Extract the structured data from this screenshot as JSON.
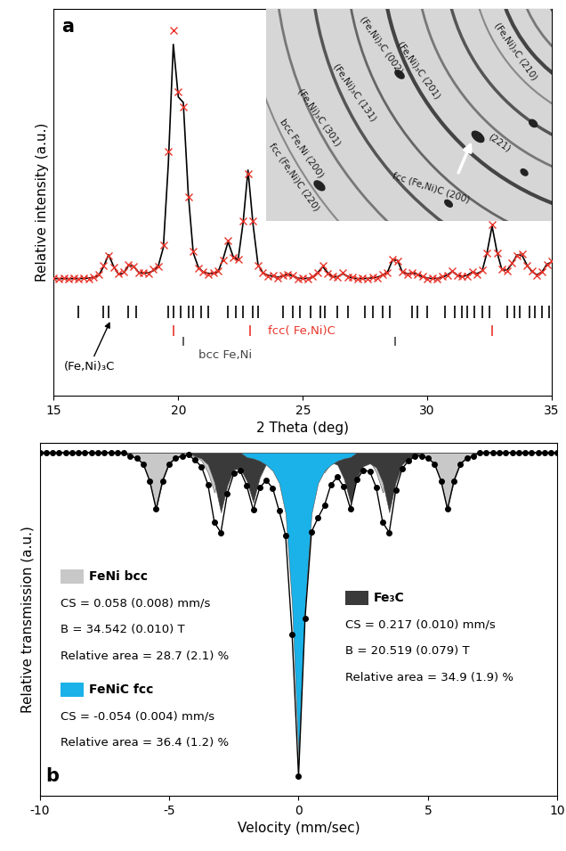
{
  "chart_data": [
    {
      "type": "line",
      "panel": "a",
      "x_label": "2 Theta (deg)",
      "y_label": "Relative intensity (a.u.)",
      "xlim": [
        15,
        35
      ],
      "xticks": [
        15,
        20,
        25,
        30,
        35
      ],
      "ylim": [
        -0.47,
        1.15
      ],
      "tick_labels": "x",
      "x": [
        15,
        15.2,
        15.4,
        15.6,
        15.8,
        16,
        16.2,
        16.4,
        16.6,
        16.8,
        17,
        17.2,
        17.4,
        17.6,
        17.8,
        18,
        18.2,
        18.4,
        18.6,
        18.8,
        19,
        19.2,
        19.4,
        19.6,
        19.8,
        20,
        20.2,
        20.4,
        20.6,
        20.8,
        21,
        21.2,
        21.4,
        21.6,
        21.8,
        22,
        22.2,
        22.4,
        22.6,
        22.8,
        23,
        23.2,
        23.4,
        23.6,
        23.8,
        24,
        24.2,
        24.4,
        24.6,
        24.8,
        25,
        25.2,
        25.4,
        25.6,
        25.8,
        26,
        26.2,
        26.4,
        26.6,
        26.8,
        27,
        27.2,
        27.4,
        27.6,
        27.8,
        28,
        28.2,
        28.4,
        28.6,
        28.8,
        29,
        29.2,
        29.4,
        29.6,
        29.8,
        30,
        30.2,
        30.4,
        30.6,
        30.8,
        31,
        31.2,
        31.4,
        31.6,
        31.8,
        32,
        32.2,
        32.4,
        32.6,
        32.8,
        33,
        33.2,
        33.4,
        33.6,
        33.8,
        34,
        34.2,
        34.4,
        34.6,
        34.8,
        35
      ],
      "series": [
        {
          "color": "#e8352b",
          "marker": "x",
          "line_style": "none",
          "values": [
            0.022,
            0.018,
            0.021,
            0.019,
            0.023,
            0.02,
            0.024,
            0.02,
            0.027,
            0.036,
            0.075,
            0.115,
            0.068,
            0.04,
            0.047,
            0.078,
            0.07,
            0.044,
            0.046,
            0.041,
            0.058,
            0.07,
            0.16,
            0.55,
            1.06,
            0.8,
            0.74,
            0.36,
            0.135,
            0.065,
            0.05,
            0.039,
            0.045,
            0.052,
            0.098,
            0.18,
            0.11,
            0.1,
            0.26,
            0.46,
            0.26,
            0.075,
            0.046,
            0.031,
            0.032,
            0.024,
            0.033,
            0.037,
            0.032,
            0.02,
            0.023,
            0.019,
            0.028,
            0.043,
            0.073,
            0.042,
            0.03,
            0.025,
            0.043,
            0.027,
            0.025,
            0.018,
            0.022,
            0.019,
            0.026,
            0.024,
            0.037,
            0.044,
            0.1,
            0.093,
            0.05,
            0.037,
            0.046,
            0.036,
            0.03,
            0.02,
            0.022,
            0.019,
            0.028,
            0.033,
            0.053,
            0.032,
            0.03,
            0.031,
            0.05,
            0.039,
            0.055,
            0.125,
            0.245,
            0.125,
            0.058,
            0.052,
            0.085,
            0.115,
            0.122,
            0.073,
            0.052,
            0.033,
            0.05,
            0.077,
            0.093
          ]
        },
        {
          "color": "#000000",
          "line_style": "solid",
          "values": [
            0.02,
            0.02,
            0.02,
            0.02,
            0.02,
            0.02,
            0.021,
            0.022,
            0.025,
            0.033,
            0.07,
            0.12,
            0.072,
            0.038,
            0.043,
            0.074,
            0.073,
            0.047,
            0.043,
            0.044,
            0.053,
            0.074,
            0.15,
            0.5,
            1.0,
            0.78,
            0.757,
            0.375,
            0.128,
            0.069,
            0.047,
            0.042,
            0.041,
            0.049,
            0.103,
            0.174,
            0.113,
            0.097,
            0.252,
            0.474,
            0.248,
            0.079,
            0.043,
            0.034,
            0.029,
            0.026,
            0.03,
            0.04,
            0.03,
            0.022,
            0.02,
            0.021,
            0.025,
            0.045,
            0.07,
            0.045,
            0.027,
            0.028,
            0.04,
            0.03,
            0.022,
            0.02,
            0.02,
            0.021,
            0.023,
            0.026,
            0.034,
            0.047,
            0.097,
            0.097,
            0.047,
            0.04,
            0.043,
            0.039,
            0.028,
            0.022,
            0.02,
            0.021,
            0.025,
            0.035,
            0.05,
            0.035,
            0.028,
            0.034,
            0.047,
            0.041,
            0.052,
            0.13,
            0.24,
            0.13,
            0.055,
            0.056,
            0.082,
            0.119,
            0.118,
            0.077,
            0.049,
            0.036,
            0.047,
            0.08,
            0.09
          ]
        }
      ],
      "reflections": [
        {
          "name": "(Fe,Ni)₃C",
          "color": "#000000",
          "positions": [
            16.0,
            17.0,
            17.2,
            18.0,
            18.3,
            19.6,
            19.8,
            20.1,
            20.4,
            20.6,
            20.9,
            21.2,
            22.0,
            22.3,
            22.6,
            23.0,
            23.2,
            24.2,
            24.6,
            24.9,
            25.3,
            25.7,
            25.9,
            26.4,
            26.8,
            27.5,
            27.8,
            28.2,
            28.5,
            29.4,
            29.6,
            30.0,
            30.7,
            31.1,
            31.4,
            31.6,
            31.9,
            32.2,
            32.5,
            33.2,
            33.5,
            33.7,
            34.1,
            34.3,
            34.6,
            34.9
          ]
        },
        {
          "name": "fcc( Fe,Ni)C",
          "color": "#e8352b",
          "positions": [
            19.8,
            22.9,
            32.6
          ]
        },
        {
          "name": "bcc Fe,Ni",
          "color": "#444444",
          "positions": [
            20.2,
            28.7
          ]
        }
      ],
      "inset": {
        "ring_labels": [
          "(Fe,Ni)₃C (210)",
          "(Fe,Ni)₃C (002)",
          "(Fe,Ni)₃C (201)",
          "(Fe,Ni)₃C (131)",
          "(221)",
          "(Fe,Ni)₃C (301)",
          "bcc Fe,Ni (200)",
          "fcc (Fe,Ni)C (200)",
          "fcc (Fe,Ni)C (220)"
        ]
      }
    },
    {
      "type": "line",
      "panel": "b",
      "x_label": "Velocity (mm/sec)",
      "y_label": "Relative transmission (a.u.)",
      "xlim": [
        -10,
        10
      ],
      "xticks": [
        -10,
        -5,
        0,
        5,
        10
      ],
      "ylim": [
        -0.03,
        1.03
      ],
      "tick_labels": "x",
      "baseline": 1,
      "x": [
        -10,
        -9.75,
        -9.5,
        -9.25,
        -9,
        -8.75,
        -8.5,
        -8.25,
        -8,
        -7.75,
        -7.5,
        -7.25,
        -7,
        -6.75,
        -6.5,
        -6.25,
        -6,
        -5.75,
        -5.5,
        -5.25,
        -5,
        -4.75,
        -4.5,
        -4.25,
        -4,
        -3.75,
        -3.5,
        -3.25,
        -3,
        -2.75,
        -2.5,
        -2.25,
        -2,
        -1.75,
        -1.5,
        -1.25,
        -1,
        -0.75,
        -0.5,
        -0.25,
        0,
        0.25,
        0.5,
        0.75,
        1,
        1.25,
        1.5,
        1.75,
        2,
        2.25,
        2.5,
        2.75,
        3,
        3.25,
        3.5,
        3.75,
        4,
        4.25,
        4.5,
        4.75,
        5,
        5.25,
        5.5,
        5.75,
        6,
        6.25,
        6.5,
        6.75,
        7,
        7.25,
        7.5,
        7.75,
        8,
        8.25,
        8.5,
        8.75,
        9,
        9.25,
        9.5,
        9.75,
        10
      ],
      "series": [
        {
          "name": "FeNi bcc",
          "type": "area",
          "color": "#c8c8c8",
          "annotation": [
            "CS = 0.058 (0.008) mm/s",
            "B = 34.542 (0.010) T",
            "Relative area = 28.7 (2.1) %"
          ],
          "values": [
            1,
            1,
            1,
            1,
            1,
            1,
            1,
            1,
            1,
            1,
            1,
            1,
            1,
            1,
            0.99,
            0.983,
            0.966,
            0.915,
            0.83,
            0.915,
            0.966,
            0.983,
            0.99,
            0.993,
            0.988,
            0.976,
            0.94,
            0.88,
            0.94,
            0.976,
            0.988,
            0.993,
            1,
            0.996,
            0.994,
            0.988,
            0.97,
            0.94,
            0.97,
            0.988,
            0.99,
            0.99,
            0.988,
            0.97,
            0.94,
            0.97,
            0.988,
            0.994,
            0.996,
            0.993,
            0.988,
            0.976,
            0.94,
            0.88,
            0.94,
            0.976,
            0.988,
            0.993,
            1,
            0.99,
            0.983,
            0.966,
            0.915,
            0.83,
            0.915,
            0.966,
            0.983,
            0.99,
            1,
            1,
            1,
            1,
            1,
            1,
            1,
            1,
            1,
            1,
            1,
            1,
            1
          ]
        },
        {
          "name": "Fe₃C",
          "type": "area",
          "color": "#3a3a3a",
          "annotation": [
            "CS = 0.217 (0.010) mm/s",
            "B = 20.519 (0.079) T",
            "Relative area = 34.9 (1.9) %"
          ],
          "values": [
            1,
            1,
            1,
            1,
            1,
            1,
            1,
            1,
            1,
            1,
            1,
            1,
            1,
            1,
            1,
            1,
            1,
            1,
            1,
            1,
            1,
            1,
            1,
            1,
            0.989,
            0.982,
            0.964,
            0.91,
            0.82,
            0.901,
            0.949,
            0.952,
            0.914,
            0.85,
            0.925,
            0.966,
            0.978,
            0.977,
            0.965,
            0.926,
            0.958,
            0.972,
            0.958,
            0.926,
            0.956,
            0.971,
            0.963,
            0.921,
            0.85,
            0.925,
            0.959,
            0.967,
            0.955,
            0.91,
            0.82,
            0.91,
            0.964,
            0.982,
            0.989,
            1,
            1,
            1,
            1,
            1,
            1,
            1,
            1,
            1,
            1,
            1,
            1,
            1,
            1,
            1,
            1,
            1,
            1,
            1,
            1,
            1,
            1
          ]
        },
        {
          "name": "FeNiC fcc",
          "type": "area",
          "color": "#1ab2e8",
          "annotation": [
            "CS = -0.054 (0.004) mm/s",
            "Relative area = 36.4 (1.2) %"
          ],
          "values": [
            1,
            1,
            1,
            1,
            1,
            1,
            1,
            1,
            1,
            1,
            1,
            1,
            1,
            1,
            1,
            1,
            1,
            1,
            1,
            1,
            1,
            1,
            1,
            1,
            1,
            1,
            1,
            1,
            1,
            1,
            1,
            1,
            0.986,
            0.982,
            0.975,
            0.963,
            0.945,
            0.908,
            0.816,
            0.54,
            0.08,
            0.54,
            0.816,
            0.908,
            0.945,
            0.963,
            0.975,
            0.982,
            0.986,
            1,
            1,
            1,
            1,
            1,
            1,
            1,
            1,
            1,
            1,
            1,
            1,
            1,
            1,
            1,
            1,
            1,
            1,
            1,
            1,
            1,
            1,
            1,
            1,
            1,
            1,
            1,
            1,
            1,
            1,
            1,
            1
          ]
        },
        {
          "type": "line",
          "color": "#000000",
          "marker": "o",
          "line_style": "solid",
          "values": [
            1,
            1,
            1,
            1,
            1,
            1,
            1,
            1,
            1,
            1,
            1,
            1,
            1,
            1,
            0.99,
            0.983,
            0.966,
            0.915,
            0.83,
            0.915,
            0.966,
            0.983,
            0.99,
            0.993,
            0.977,
            0.958,
            0.904,
            0.79,
            0.76,
            0.877,
            0.937,
            0.945,
            0.9,
            0.828,
            0.894,
            0.917,
            0.893,
            0.825,
            0.751,
            0.454,
            0.028,
            0.502,
            0.762,
            0.804,
            0.841,
            0.904,
            0.926,
            0.897,
            0.832,
            0.918,
            0.947,
            0.943,
            0.895,
            0.79,
            0.76,
            0.886,
            0.952,
            0.975,
            0.989,
            0.99,
            0.983,
            0.966,
            0.915,
            0.83,
            0.915,
            0.966,
            0.983,
            0.99,
            1,
            1,
            1,
            1,
            1,
            1,
            1,
            1,
            1,
            1,
            1,
            1,
            1
          ]
        }
      ]
    }
  ]
}
